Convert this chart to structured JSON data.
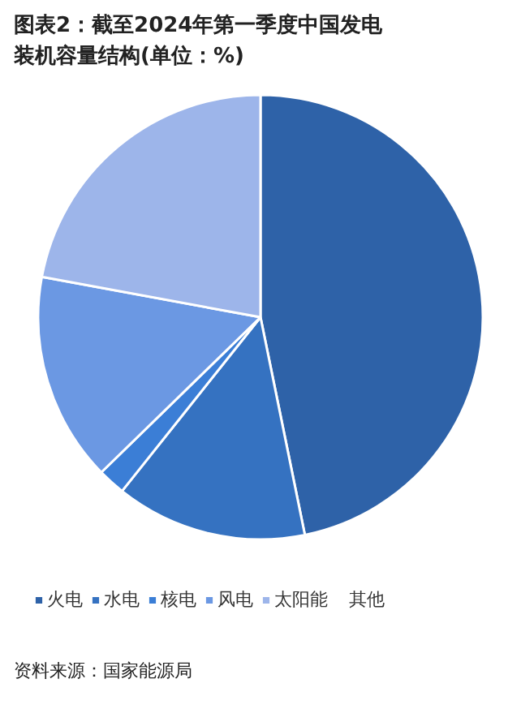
{
  "chart_data": {
    "type": "pie",
    "title": "图表2：截至2024年第一季度中国发电装机容量结构(单位：%)",
    "categories": [
      "火电",
      "水电",
      "核电",
      "风电",
      "太阳能",
      "其他"
    ],
    "values": [
      46.8,
      13.9,
      2.0,
      15.2,
      22.1,
      0
    ],
    "colors": [
      "#2e62a8",
      "#3572c1",
      "#3b7ed6",
      "#6b98e3",
      "#9db5ea",
      "#c0cff0"
    ],
    "legend": "bottom",
    "annotations": [
      "资料来源：国家能源局"
    ]
  }
}
